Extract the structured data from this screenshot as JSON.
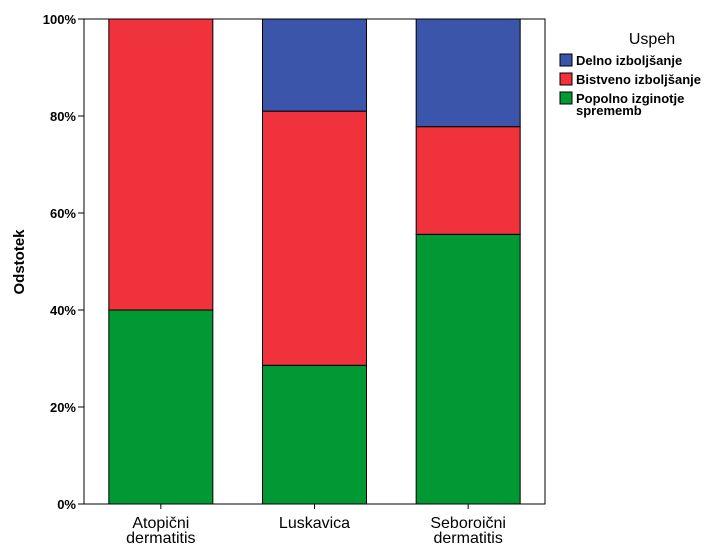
{
  "chart_data": {
    "type": "bar",
    "stacked": true,
    "ylabel": "Odstotek",
    "ylim": [
      0,
      100
    ],
    "yticks": [
      "0%",
      "20%",
      "40%",
      "60%",
      "80%",
      "100%"
    ],
    "categories": [
      [
        "Atopični",
        "dermatitis"
      ],
      [
        "Luskavica"
      ],
      [
        "Seboroični",
        "dermatitis"
      ]
    ],
    "legend": {
      "title": "Uspeh",
      "position": "right",
      "entries": [
        [
          "Delno izboljšanje"
        ],
        [
          "Bistveno izboljšanje"
        ],
        [
          "Popolno izginotje",
          "sprememb"
        ]
      ]
    },
    "series": [
      {
        "values": [
          40.0,
          28.6,
          55.6
        ],
        "color": "#009933"
      },
      {
        "values": [
          60.0,
          52.4,
          22.2
        ],
        "color": "#f0323c"
      },
      {
        "values": [
          0.0,
          19.0,
          22.2
        ],
        "color": "#3a55a9"
      }
    ],
    "legend_colors": [
      "#3a55a9",
      "#f0323c",
      "#009933"
    ],
    "grid": false
  }
}
